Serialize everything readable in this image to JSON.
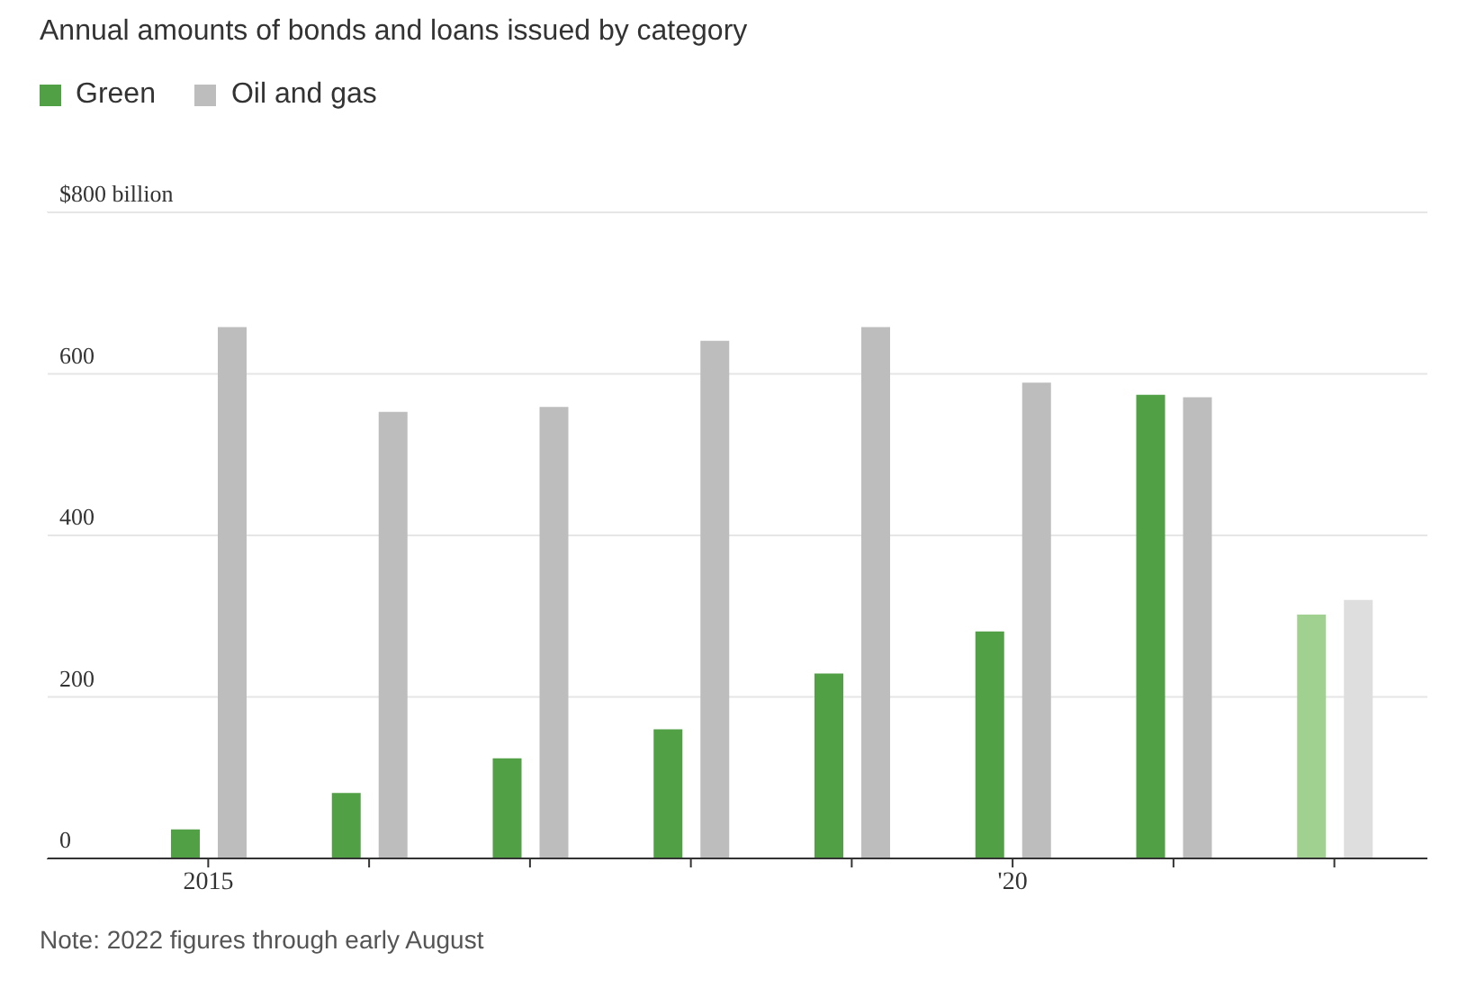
{
  "chart_data": {
    "type": "bar",
    "title": "Annual amounts of bonds and loans issued by category",
    "categories": [
      "2015",
      null,
      null,
      null,
      null,
      "'20",
      null,
      null
    ],
    "series": [
      {
        "name": "Green",
        "color": "#52a046",
        "colors": [
          "#52a046",
          "#52a046",
          "#52a046",
          "#52a046",
          "#52a046",
          "#52a046",
          "#52a046",
          "#a1d190"
        ],
        "values": [
          36,
          81,
          124,
          160,
          229,
          281,
          574,
          302
        ]
      },
      {
        "name": "Oil and gas",
        "color": "#bdbdbd",
        "colors": [
          "#bdbdbd",
          "#bdbdbd",
          "#bdbdbd",
          "#bdbdbd",
          "#bdbdbd",
          "#bdbdbd",
          "#bdbdbd",
          "#dedede"
        ],
        "values": [
          658,
          553,
          559,
          641,
          658,
          589,
          571,
          320
        ]
      }
    ],
    "ylim": [
      0,
      800
    ],
    "yticks": [
      0,
      200,
      400,
      600,
      {
        "value": 800,
        "label": "$800 billion"
      }
    ],
    "grid": "y",
    "legend": "top left",
    "annotations": [
      "Note: 2022 figures through early August"
    ]
  }
}
